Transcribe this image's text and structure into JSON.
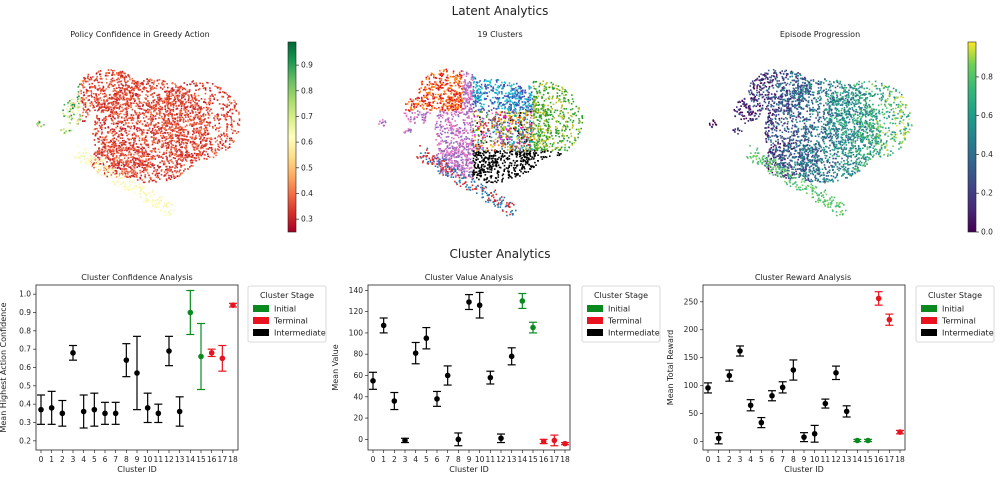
{
  "super_titles": {
    "top": "Latent Analytics",
    "bottom": "Cluster Analytics"
  },
  "legend": {
    "title": "Cluster Stage",
    "entries": [
      {
        "label": "Initial",
        "color": "#0a8a1e"
      },
      {
        "label": "Terminal",
        "color": "#e8131f"
      },
      {
        "label": "Intermediate",
        "color": "#000000"
      }
    ]
  },
  "chart_data": [
    {
      "type": "scatter",
      "title": "Policy Confidence in Greedy Action",
      "colormap": "RdYlGn",
      "colorbar": {
        "ticks": [
          0.3,
          0.4,
          0.5,
          0.6,
          0.7,
          0.8,
          0.9
        ],
        "range": [
          0.25,
          0.99
        ]
      }
    },
    {
      "type": "scatter",
      "title": "19 Clusters"
    },
    {
      "type": "scatter",
      "title": "Episode Progression",
      "colormap": "viridis",
      "colorbar": {
        "ticks": [
          0.0,
          0.2,
          0.4,
          0.6,
          0.8
        ],
        "range": [
          0.0,
          0.98
        ]
      }
    },
    {
      "type": "scatter",
      "title": "Cluster Confidence Analysis",
      "xlabel": "Cluster ID",
      "ylabel": "Mean Highest Action Confidence",
      "categories": [
        "0",
        "1",
        "2",
        "3",
        "4",
        "5",
        "6",
        "7",
        "8",
        "9",
        "10",
        "11",
        "12",
        "13",
        "14",
        "15",
        "16",
        "17",
        "18"
      ],
      "values": [
        0.37,
        0.38,
        0.35,
        0.68,
        0.36,
        0.37,
        0.35,
        0.35,
        0.64,
        0.57,
        0.38,
        0.35,
        0.69,
        0.36,
        0.9,
        0.66,
        0.68,
        0.65,
        0.94
      ],
      "errors": [
        0.08,
        0.09,
        0.07,
        0.04,
        0.09,
        0.09,
        0.06,
        0.06,
        0.09,
        0.2,
        0.08,
        0.05,
        0.08,
        0.08,
        0.12,
        0.18,
        0.02,
        0.07,
        0.01
      ],
      "stages": [
        "Intermediate",
        "Intermediate",
        "Intermediate",
        "Intermediate",
        "Intermediate",
        "Intermediate",
        "Intermediate",
        "Intermediate",
        "Intermediate",
        "Intermediate",
        "Intermediate",
        "Intermediate",
        "Intermediate",
        "Intermediate",
        "Initial",
        "Initial",
        "Terminal",
        "Terminal",
        "Terminal"
      ],
      "yticks": [
        0.2,
        0.3,
        0.4,
        0.5,
        0.6,
        0.7,
        0.8,
        0.9,
        1.0
      ],
      "ylim": [
        0.15,
        1.05
      ]
    },
    {
      "type": "scatter",
      "title": "Cluster Value Analysis",
      "xlabel": "Cluster ID",
      "ylabel": "Mean Value",
      "categories": [
        "0",
        "1",
        "2",
        "3",
        "4",
        "5",
        "6",
        "7",
        "8",
        "9",
        "10",
        "11",
        "12",
        "13",
        "14",
        "15",
        "16",
        "17",
        "18"
      ],
      "values": [
        55,
        107,
        36,
        -1,
        81,
        95,
        38,
        60,
        0,
        129,
        126,
        58,
        1,
        78,
        130,
        105,
        -2,
        -1,
        -4
      ],
      "errors": [
        8,
        7,
        8,
        2,
        10,
        10,
        7,
        9,
        6,
        7,
        12,
        6,
        4,
        8,
        7,
        5,
        2,
        5,
        1
      ],
      "stages": [
        "Intermediate",
        "Intermediate",
        "Intermediate",
        "Intermediate",
        "Intermediate",
        "Intermediate",
        "Intermediate",
        "Intermediate",
        "Intermediate",
        "Intermediate",
        "Intermediate",
        "Intermediate",
        "Intermediate",
        "Intermediate",
        "Initial",
        "Initial",
        "Terminal",
        "Terminal",
        "Terminal"
      ],
      "yticks": [
        0,
        20,
        40,
        60,
        80,
        100,
        120,
        140
      ],
      "ylim": [
        -10,
        145
      ]
    },
    {
      "type": "scatter",
      "title": "Cluster Reward Analysis",
      "xlabel": "Cluster ID",
      "ylabel": "Mean Total Reward",
      "categories": [
        "0",
        "1",
        "2",
        "3",
        "4",
        "5",
        "6",
        "7",
        "8",
        "9",
        "10",
        "11",
        "12",
        "13",
        "14",
        "15",
        "16",
        "17",
        "18"
      ],
      "values": [
        96,
        6,
        118,
        162,
        65,
        34,
        82,
        97,
        128,
        8,
        14,
        68,
        123,
        54,
        2,
        2,
        256,
        218,
        17
      ],
      "errors": [
        9,
        10,
        10,
        9,
        10,
        9,
        9,
        10,
        18,
        8,
        15,
        8,
        12,
        10,
        2,
        2,
        12,
        10,
        3
      ],
      "stages": [
        "Intermediate",
        "Intermediate",
        "Intermediate",
        "Intermediate",
        "Intermediate",
        "Intermediate",
        "Intermediate",
        "Intermediate",
        "Intermediate",
        "Intermediate",
        "Intermediate",
        "Intermediate",
        "Intermediate",
        "Intermediate",
        "Initial",
        "Initial",
        "Terminal",
        "Terminal",
        "Terminal"
      ],
      "yticks": [
        0,
        50,
        100,
        150,
        200,
        250
      ],
      "ylim": [
        -15,
        280
      ]
    }
  ]
}
